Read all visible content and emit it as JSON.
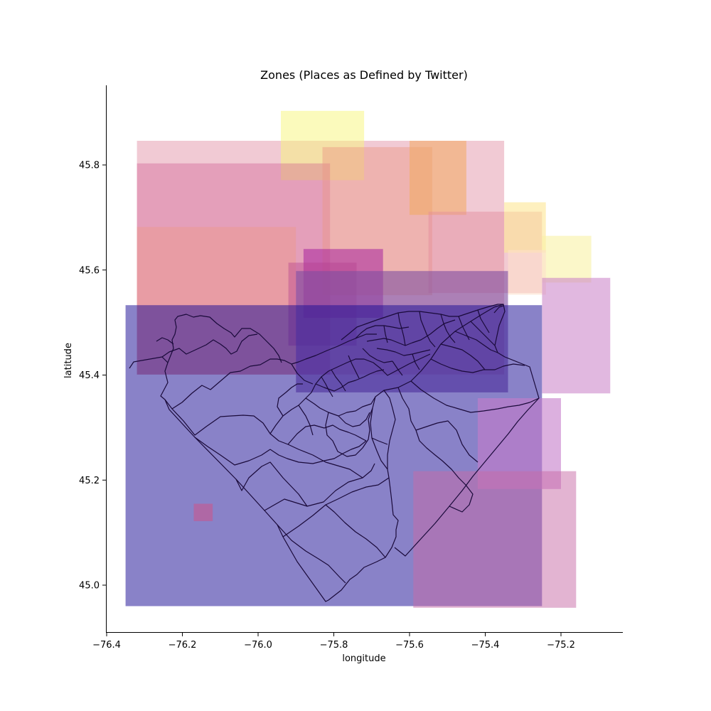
{
  "chart_data": {
    "type": "map",
    "title": "Zones (Places as Defined by Twitter)",
    "xlabel": "longitude",
    "ylabel": "latitude",
    "xlim": [
      -76.4,
      -75.02
    ],
    "ylim": [
      44.91,
      45.95
    ],
    "xticks": [
      -76.4,
      -76.2,
      -76.0,
      -75.8,
      -75.6,
      -75.4,
      -75.2
    ],
    "xtick_labels": [
      "−76.4",
      "−76.2",
      "−76.0",
      "−75.8",
      "−75.6",
      "−75.4",
      "−75.2"
    ],
    "yticks": [
      45.0,
      45.2,
      45.4,
      45.6,
      45.8
    ],
    "ytick_labels": [
      "45.0",
      "45.2",
      "45.4",
      "45.6",
      "45.8"
    ],
    "grid": false,
    "zones": [
      {
        "lon": [
          -76.32,
          -75.35
        ],
        "lat": [
          45.401,
          45.846
        ],
        "color": "#e7a3b5",
        "opacity": 0.58
      },
      {
        "lon": [
          -75.94,
          -75.72
        ],
        "lat": [
          45.771,
          45.903
        ],
        "color": "#f8f57a",
        "opacity": 0.5
      },
      {
        "lon": [
          -76.32,
          -75.81
        ],
        "lat": [
          45.401,
          45.803
        ],
        "color": "#cc4f8a",
        "opacity": 0.35
      },
      {
        "lon": [
          -75.83,
          -75.54
        ],
        "lat": [
          45.552,
          45.834
        ],
        "color": "#ea9784",
        "opacity": 0.45
      },
      {
        "lon": [
          -75.6,
          -75.45
        ],
        "lat": [
          45.705,
          45.846
        ],
        "color": "#f3a95e",
        "opacity": 0.55
      },
      {
        "lon": [
          -76.32,
          -75.9
        ],
        "lat": [
          45.401,
          45.682
        ],
        "color": "#ee9a8a",
        "opacity": 0.45
      },
      {
        "lon": [
          -75.55,
          -75.25
        ],
        "lat": [
          45.556,
          45.711
        ],
        "color": "#e3899c",
        "opacity": 0.45
      },
      {
        "lon": [
          -75.35,
          -75.24
        ],
        "lat": [
          45.633,
          45.729
        ],
        "color": "#fde694",
        "opacity": 0.6
      },
      {
        "lon": [
          -75.25,
          -75.12
        ],
        "lat": [
          45.576,
          45.665
        ],
        "color": "#f9f1a5",
        "opacity": 0.6
      },
      {
        "lon": [
          -75.34,
          -75.24
        ],
        "lat": [
          45.553,
          45.638
        ],
        "color": "#fde0cc",
        "opacity": 0.6
      },
      {
        "lon": [
          -75.25,
          -75.07
        ],
        "lat": [
          45.365,
          45.585
        ],
        "color": "#c97dc6",
        "opacity": 0.55
      },
      {
        "lon": [
          -75.88,
          -75.67
        ],
        "lat": [
          45.509,
          45.64
        ],
        "color": "#a8239e",
        "opacity": 0.55
      },
      {
        "lon": [
          -75.92,
          -75.74
        ],
        "lat": [
          45.456,
          45.614
        ],
        "color": "#b33f8f",
        "opacity": 0.4
      },
      {
        "lon": [
          -75.9,
          -75.34
        ],
        "lat": [
          45.367,
          45.598
        ],
        "color": "#7f4ea1",
        "opacity": 0.6
      },
      {
        "lon": [
          -76.35,
          -75.25
        ],
        "lat": [
          44.96,
          45.533
        ],
        "color": "#1c0f95",
        "opacity": 0.52
      },
      {
        "lon": [
          -75.42,
          -75.2
        ],
        "lat": [
          45.183,
          45.356
        ],
        "color": "#c57bc9",
        "opacity": 0.6
      },
      {
        "lon": [
          -75.59,
          -75.16
        ],
        "lat": [
          44.957,
          45.217
        ],
        "color": "#c86aa6",
        "opacity": 0.5
      },
      {
        "lon": [
          -76.17,
          -76.12
        ],
        "lat": [
          45.122,
          45.155
        ],
        "color": "#bf5c95",
        "opacity": 0.7
      }
    ]
  }
}
